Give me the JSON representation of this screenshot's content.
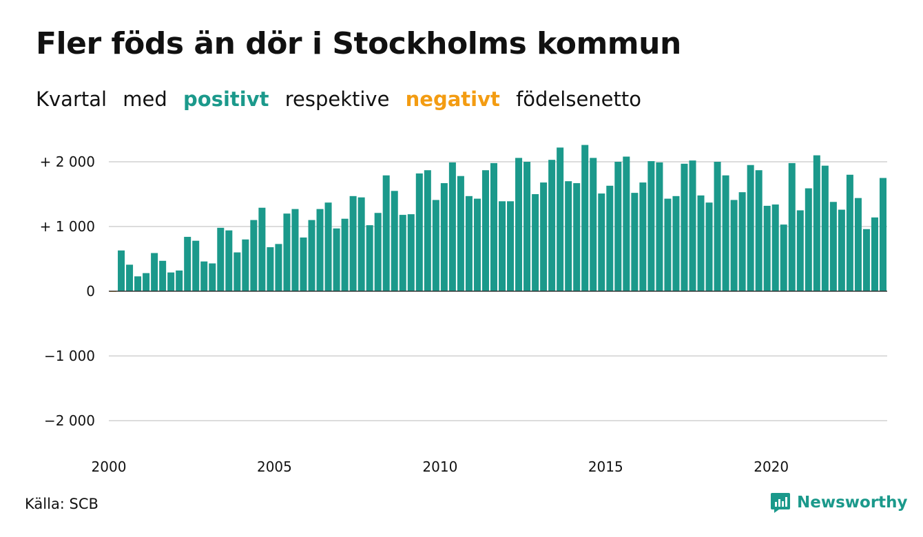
{
  "title": "Fler föds än dör i Stockholms kommun",
  "subtitle": {
    "w1": "Kvartal",
    "w2": "med",
    "positive": "positivt",
    "w3": "respektive",
    "negative": "negativt",
    "w4": "födelsenetto"
  },
  "source": "Källa: SCB",
  "logo_text": "Newsworthy",
  "colors": {
    "positive": "#1b998b",
    "negative": "#f39c12",
    "grid": "#dcdcdc",
    "axis": "#333333"
  },
  "chart_data": {
    "type": "bar",
    "title": "Fler föds än dör i Stockholms kommun",
    "x_start_year": 2000,
    "quarters_per_year": 4,
    "x_tick_labels": [
      "2000",
      "2005",
      "2010",
      "2015",
      "2020"
    ],
    "x_tick_years": [
      2000,
      2005,
      2010,
      2015,
      2020
    ],
    "ylim": [
      -2200,
      2300
    ],
    "y_ticks": [
      2000,
      1000,
      0,
      -1000,
      -2000
    ],
    "y_tick_labels": [
      "+ 2 000",
      "+ 1 000",
      "0",
      "−1 000",
      "−2 000"
    ],
    "grid": true,
    "values": [
      -10,
      630,
      410,
      230,
      280,
      590,
      470,
      290,
      320,
      840,
      780,
      460,
      430,
      980,
      940,
      600,
      800,
      1100,
      1290,
      680,
      730,
      1200,
      1270,
      830,
      1100,
      1270,
      1370,
      970,
      1120,
      1470,
      1450,
      1020,
      1210,
      1790,
      1550,
      1180,
      1190,
      1820,
      1870,
      1410,
      1670,
      1990,
      1780,
      1470,
      1430,
      1870,
      1980,
      1390,
      1390,
      2060,
      2000,
      1500,
      1680,
      2030,
      2220,
      1700,
      1670,
      2260,
      2060,
      1510,
      1630,
      2000,
      2080,
      1520,
      1680,
      2010,
      1990,
      1430,
      1470,
      1970,
      2020,
      1480,
      1370,
      2000,
      1790,
      1410,
      1530,
      1950,
      1870,
      1320,
      1340,
      1030,
      1980,
      1250,
      1590,
      2100,
      1940,
      1380,
      1260,
      1800,
      1440,
      960,
      1140,
      1750
    ]
  }
}
